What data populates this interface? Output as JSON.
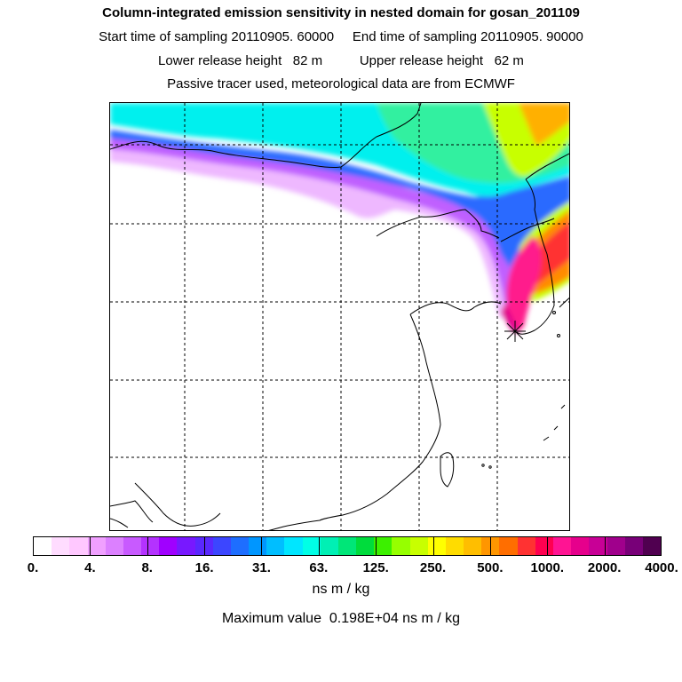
{
  "header": {
    "title": "Column-integrated emission sensitivity in nested domain for gosan_201109",
    "sampling_line": "Start time of sampling 20110905. 60000     End time of sampling 20110905. 90000",
    "release_line": "Lower release height   82 m          Upper release height   62 m",
    "source_line": "Passive tracer used, meteorological data are from ECMWF"
  },
  "colorbar": {
    "colors": [
      "#ffffff",
      "#ffdcff",
      "#ffc8ff",
      "#f0a0ff",
      "#dc80ff",
      "#c85aff",
      "#b432ff",
      "#a000ff",
      "#7818ff",
      "#5a28ff",
      "#3c46ff",
      "#1e6eff",
      "#0096ff",
      "#00beff",
      "#00e6ff",
      "#00ffe6",
      "#00f0b4",
      "#00e678",
      "#00dc3c",
      "#3cf000",
      "#96ff00",
      "#c8ff00",
      "#ffff00",
      "#ffdc00",
      "#ffbe00",
      "#ff9600",
      "#ff6e00",
      "#ff3232",
      "#ff0050",
      "#ff1493",
      "#e6008c",
      "#c80096",
      "#a0008c",
      "#780078",
      "#500050"
    ],
    "labels": [
      "0.",
      "4.",
      "8.",
      "16.",
      "31.",
      "63.",
      "125.",
      "250.",
      "500.",
      "1000.",
      "2000.",
      "4000."
    ],
    "unit": "ns m / kg"
  },
  "max_value_text": "Maximum value  0.198E+04 ns m / kg",
  "map": {
    "receptor": "gosan",
    "receptor_marker": "asterisk",
    "gridlines": "dashed"
  }
}
